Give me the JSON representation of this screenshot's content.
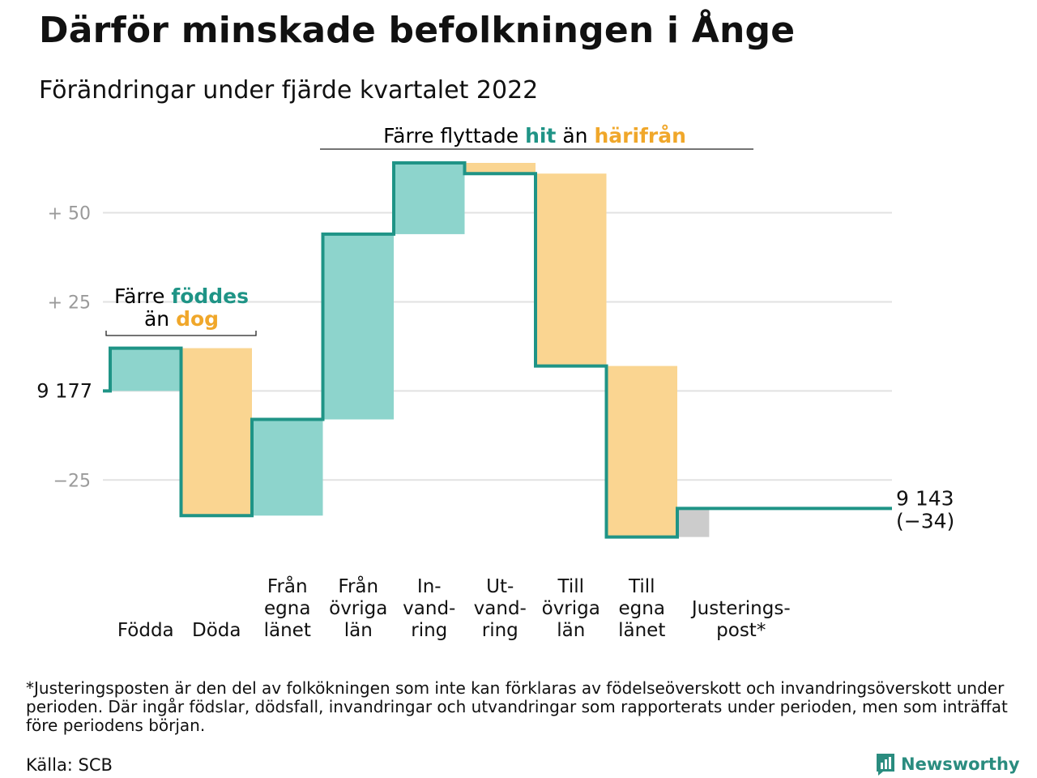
{
  "title": "Därför minskade befolkningen i Ånge",
  "subtitle": "Förändringar under fjärde kvartalet 2022",
  "footnote": "*Justeringsposten är den del av folkökningen som inte kan förklaras av födelseöverskott och invandringsöverskott under perioden. Där ingår födslar, dödsfall, invandringar och utvandringar som rapporterats under perioden, men som inträffat före periodens början.",
  "source": "Källa: SCB",
  "logo_text": "Newsworthy",
  "colors": {
    "line": "#1f9486",
    "positive": "#8dd4cc",
    "negative": "#fad591",
    "adjust": "#cccccc",
    "teal_text": "#1f9486",
    "orange_text": "#f0a72a",
    "grid": "#e2e2e2",
    "axis_text": "#9a9a9a"
  },
  "annotations": {
    "birth": {
      "prefix": "Färre ",
      "hl1": "föddes",
      "line2": "än ",
      "hl2": "dog"
    },
    "move": {
      "prefix": "Färre flyttade ",
      "hl1": "hit",
      "mid": " än ",
      "hl2": "härifrån"
    }
  },
  "chart_data": {
    "type": "waterfall",
    "start_value": 9177,
    "start_label": "9 177",
    "end_value": 9143,
    "end_label": "9 143",
    "end_change_label": "(−34)",
    "y_ticks": [
      {
        "value": 50,
        "label": "+ 50"
      },
      {
        "value": 25,
        "label": "+ 25"
      },
      {
        "value": 0,
        "label": ""
      },
      {
        "value": -25,
        "label": "−25"
      }
    ],
    "ylim": [
      -42,
      64
    ],
    "grid": true,
    "steps": [
      {
        "label": [
          "Födda"
        ],
        "change": 12
      },
      {
        "label": [
          "Döda"
        ],
        "change": -47
      },
      {
        "label": [
          "Från",
          "egna",
          "länet"
        ],
        "change": 27
      },
      {
        "label": [
          "Från",
          "övriga",
          "län"
        ],
        "change": 52
      },
      {
        "label": [
          "In-",
          "vand-",
          "ring"
        ],
        "change": 20
      },
      {
        "label": [
          "Ut-",
          "vand-",
          "ring"
        ],
        "change": -3
      },
      {
        "label": [
          "Till",
          "övriga",
          "län"
        ],
        "change": -54
      },
      {
        "label": [
          "Till",
          "egna",
          "länet"
        ],
        "change": -48
      },
      {
        "label": [
          "Justerings-",
          "post*"
        ],
        "change": 8
      }
    ]
  }
}
